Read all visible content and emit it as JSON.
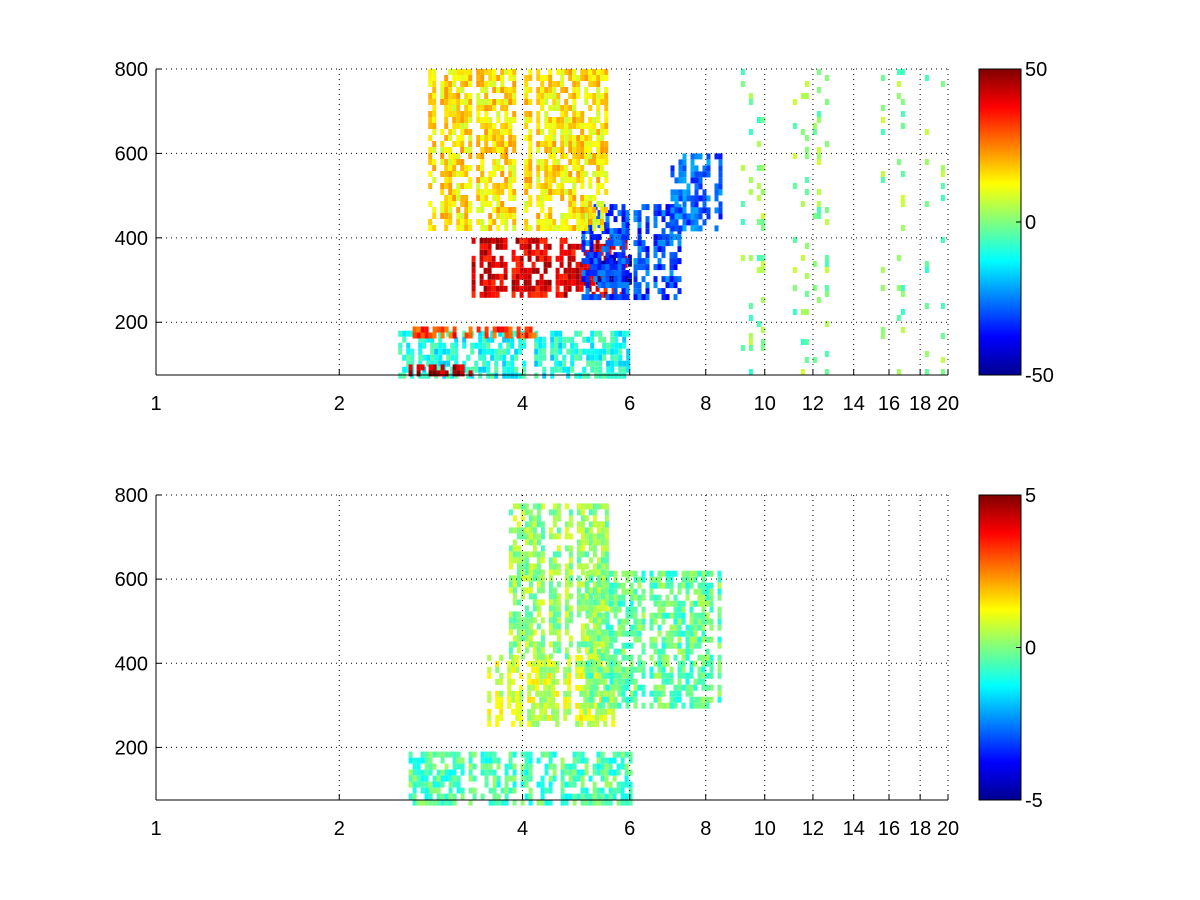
{
  "chart_data": [
    {
      "type": "heatmap",
      "title": "",
      "xlabel": "",
      "ylabel": "",
      "x_scale": "log",
      "xlim": [
        1,
        20
      ],
      "ylim": [
        75,
        800
      ],
      "x_ticks": [
        1,
        2,
        4,
        6,
        8,
        10,
        12,
        14,
        16,
        18,
        20
      ],
      "x_tick_labels": [
        "1",
        "2",
        "4",
        "6",
        "8",
        "10",
        "12",
        "14",
        "16",
        "18",
        "20"
      ],
      "y_ticks": [
        200,
        400,
        600,
        800
      ],
      "y_tick_labels": [
        "200",
        "400",
        "600",
        "800"
      ],
      "grid": true,
      "colorbar": {
        "colormap": "jet",
        "clim": [
          -50,
          50
        ],
        "tick_values": [
          -50,
          0,
          50
        ],
        "tick_labels": [
          "-50",
          "0",
          "50"
        ]
      },
      "regions": [
        {
          "x": [
            2.5,
            6
          ],
          "y": [
            75,
            180
          ],
          "value": -10
        },
        {
          "x": [
            2.6,
            3.3
          ],
          "y": [
            75,
            100
          ],
          "value": 45
        },
        {
          "x": [
            2.6,
            4.2
          ],
          "y": [
            170,
            190
          ],
          "value": 32
        },
        {
          "x": [
            3.3,
            6
          ],
          "y": [
            270,
            400
          ],
          "value": 40
        },
        {
          "x": [
            5.2,
            6
          ],
          "y": [
            300,
            360
          ],
          "value": -45
        },
        {
          "x": [
            5,
            7.2
          ],
          "y": [
            260,
            480
          ],
          "value": -30
        },
        {
          "x": [
            7,
            8.4
          ],
          "y": [
            420,
            600
          ],
          "value": -28
        },
        {
          "x": [
            2.8,
            5.5
          ],
          "y": [
            420,
            800
          ],
          "value": 15
        },
        {
          "x": [
            9,
            20
          ],
          "y": [
            75,
            800
          ],
          "value": 0,
          "coverage": "sparse"
        }
      ]
    },
    {
      "type": "heatmap",
      "title": "",
      "xlabel": "",
      "ylabel": "",
      "x_scale": "log",
      "xlim": [
        1,
        20
      ],
      "ylim": [
        75,
        800
      ],
      "x_ticks": [
        1,
        2,
        4,
        6,
        8,
        10,
        12,
        14,
        16,
        18,
        20
      ],
      "x_tick_labels": [
        "1",
        "2",
        "4",
        "6",
        "8",
        "10",
        "12",
        "14",
        "16",
        "18",
        "20"
      ],
      "y_ticks": [
        200,
        400,
        600,
        800
      ],
      "y_tick_labels": [
        "200",
        "400",
        "600",
        "800"
      ],
      "grid": true,
      "colorbar": {
        "colormap": "jet",
        "clim": [
          -5,
          5
        ],
        "tick_values": [
          -5,
          0,
          5
        ],
        "tick_labels": [
          "-5",
          "0",
          "5"
        ]
      },
      "regions": [
        {
          "x": [
            2.6,
            6
          ],
          "y": [
            75,
            190
          ],
          "value": -0.5
        },
        {
          "x": [
            3.5,
            5.6
          ],
          "y": [
            250,
            420
          ],
          "value": 0.8
        },
        {
          "x": [
            5,
            8.4
          ],
          "y": [
            300,
            620
          ],
          "value": -0.3
        },
        {
          "x": [
            3.8,
            5.5
          ],
          "y": [
            420,
            780
          ],
          "value": 0.2
        }
      ]
    }
  ]
}
